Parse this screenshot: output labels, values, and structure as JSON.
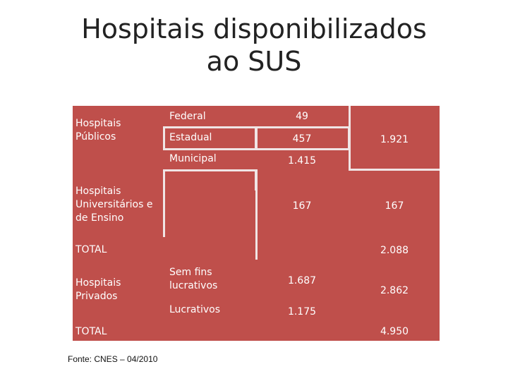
{
  "title_line1": "Hospitais disponibilizados",
  "title_line2": "ao SUS",
  "table": {
    "publicos_label": "Hospitais Públicos",
    "federal_label": "Federal",
    "federal_value": "49",
    "estadual_label": "Estadual",
    "estadual_value": "457",
    "municipal_label": "Municipal",
    "municipal_value": "1.415",
    "publicos_total": "1.921",
    "universitarios_label": "Hospitais Universitários e de Ensino",
    "universitarios_value": "167",
    "universitarios_total": "167",
    "total1_label": "TOTAL",
    "total1_value": "2.088",
    "privados_label": "Hospitais Privados",
    "sem_fins_label": "Sem fins lucrativos",
    "sem_fins_value": "1.687",
    "lucrativos_label": "Lucrativos",
    "lucrativos_value": "1.175",
    "privados_total": "2.862",
    "total2_label": "TOTAL",
    "total2_value": "4.950"
  },
  "source": "Fonte: CNES – 04/2010"
}
